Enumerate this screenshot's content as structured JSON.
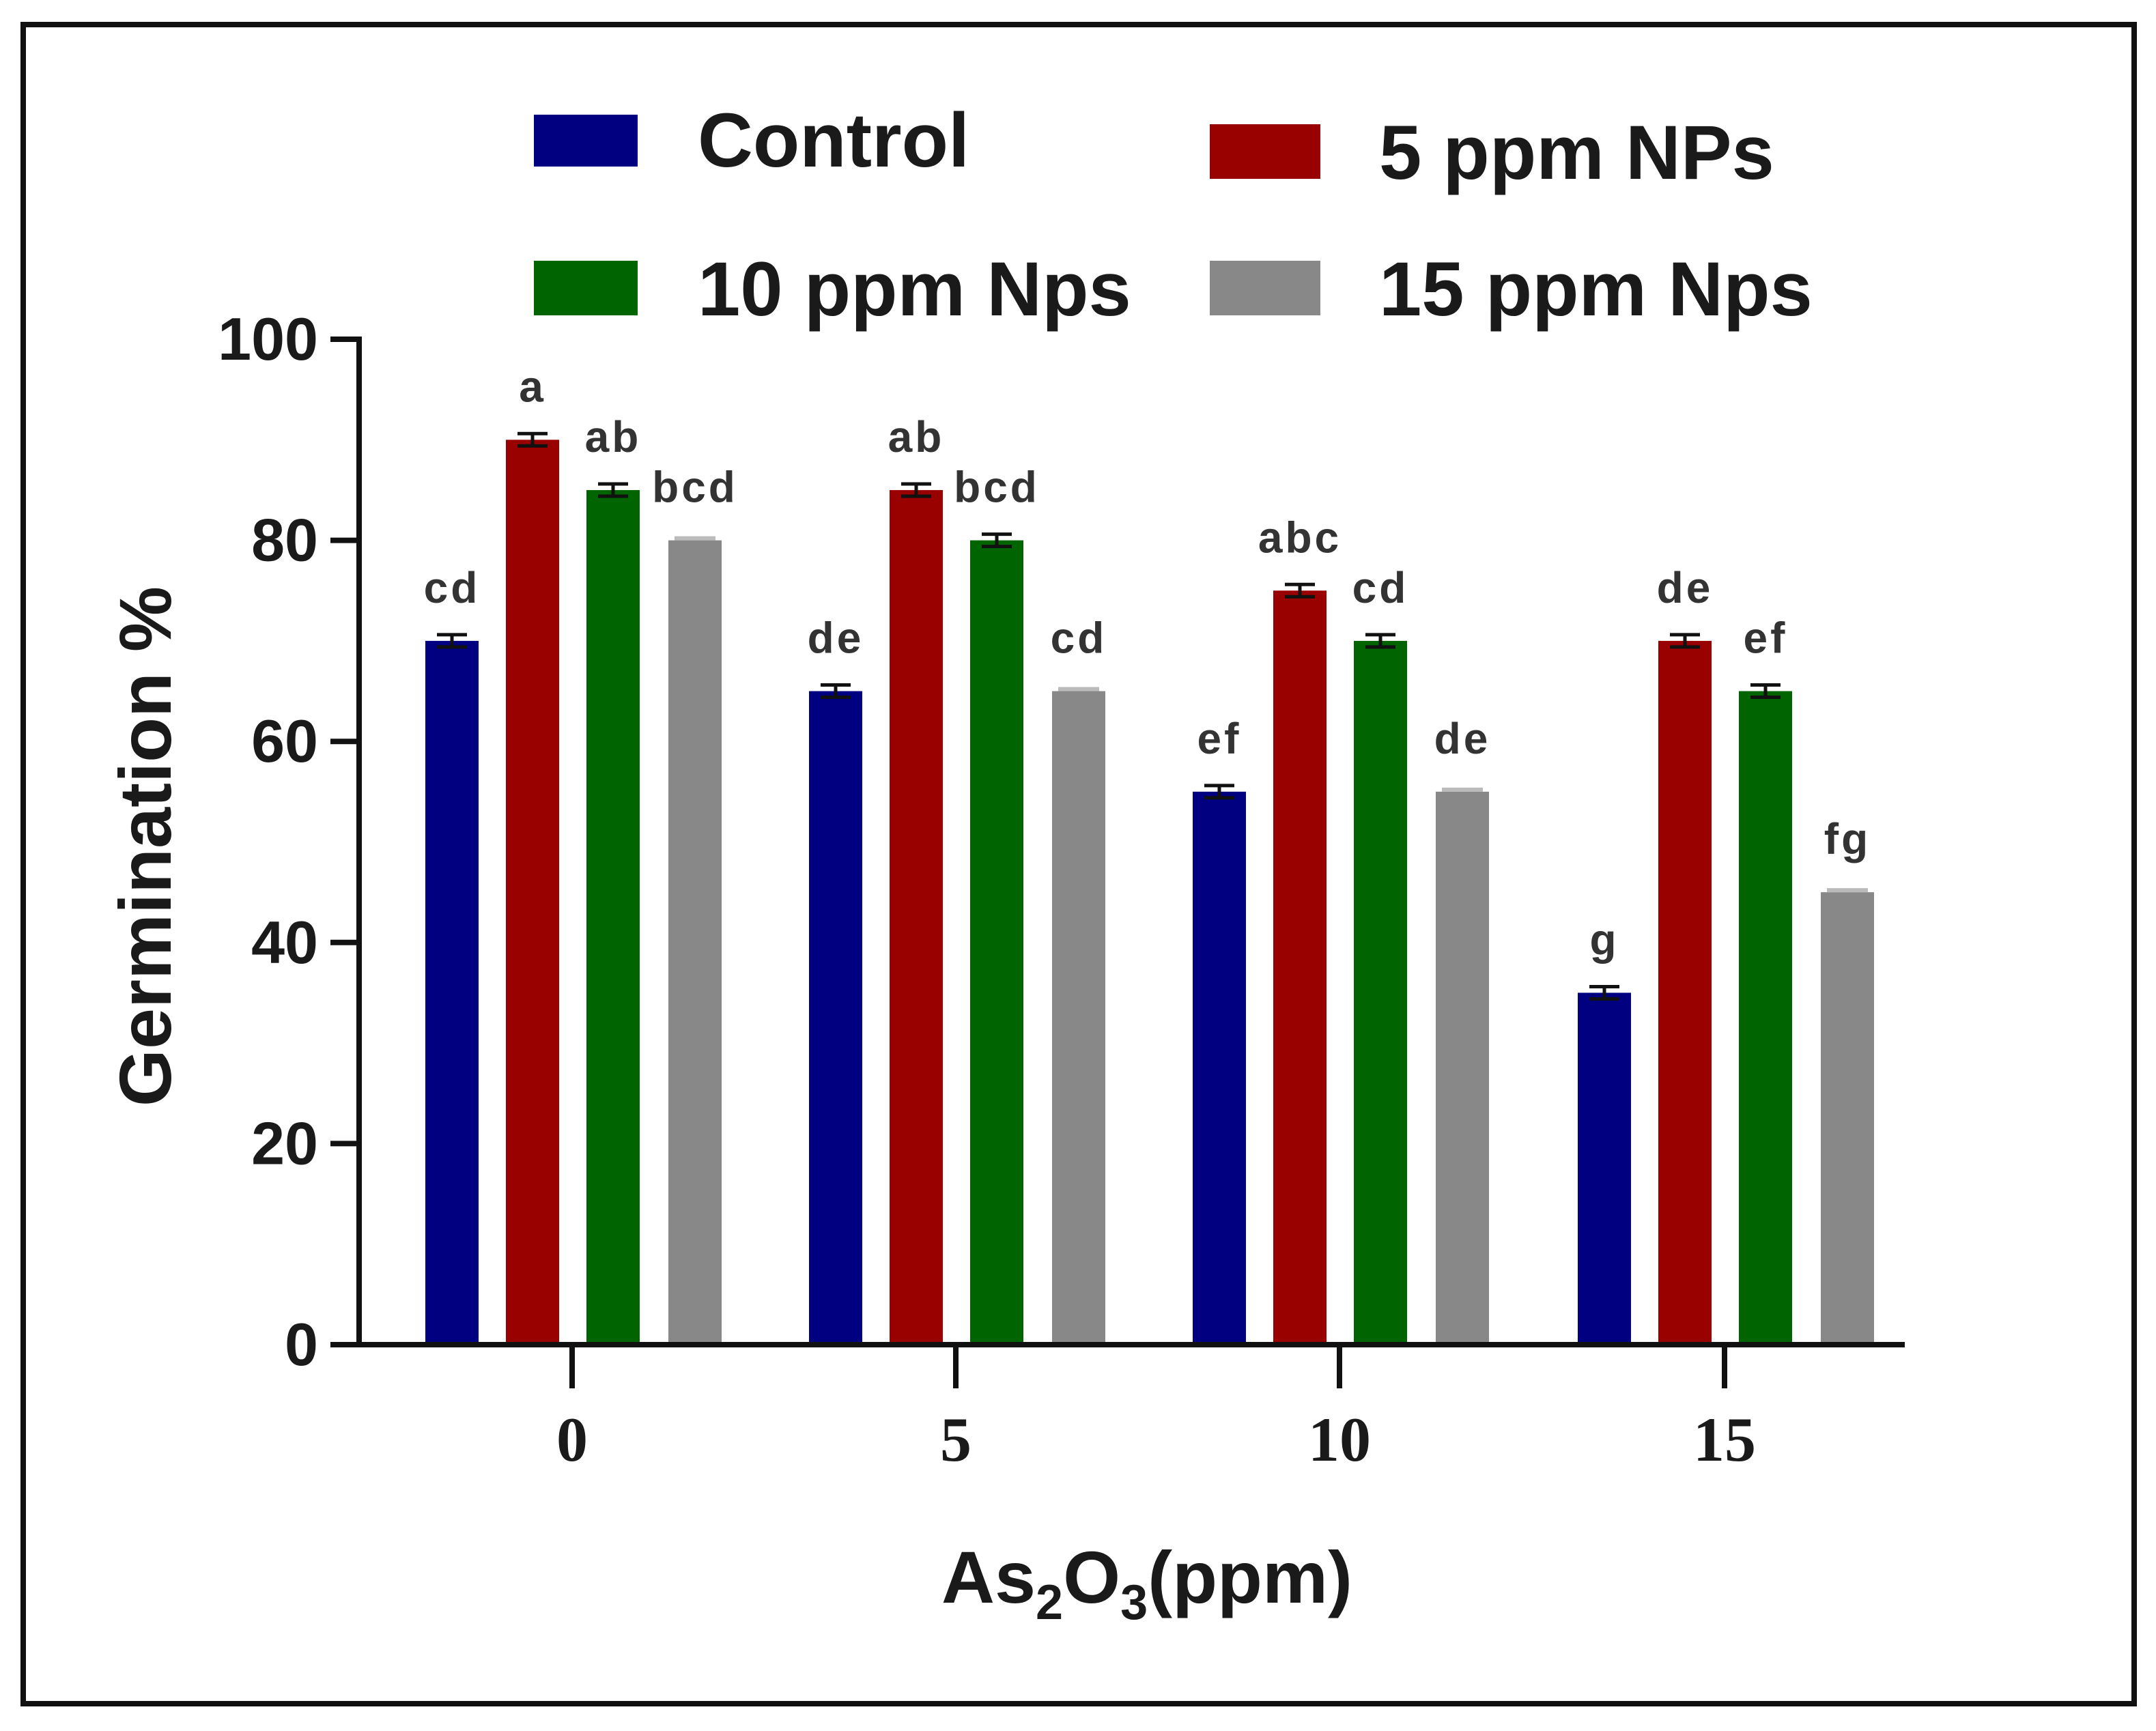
{
  "chart_data": {
    "type": "bar",
    "title": "",
    "xlabel": "As2O3(ppm)",
    "xlabel_main": "As",
    "xlabel_sub1": "2",
    "xlabel_mid": "O",
    "xlabel_sub2": "3",
    "xlabel_tail": "(ppm)",
    "ylabel": "Germination %",
    "ylim": [
      0,
      100
    ],
    "yticks": [
      0,
      20,
      40,
      60,
      80,
      100
    ],
    "categories": [
      "0",
      "5",
      "10",
      "15"
    ],
    "legend_position": "top",
    "series": [
      {
        "name": "Control",
        "color": "#000080",
        "values": [
          70,
          65,
          55,
          35
        ],
        "labels": [
          "cd",
          "de",
          "ef",
          "g"
        ]
      },
      {
        "name": "5 ppm NPs",
        "color": "#990000",
        "values": [
          90,
          85,
          75,
          70
        ],
        "labels": [
          "a",
          "ab",
          "abc",
          "de"
        ]
      },
      {
        "name": "10 ppm Nps",
        "color": "#006400",
        "values": [
          85,
          80,
          70,
          65
        ],
        "labels": [
          "ab",
          "bcd",
          "cd",
          "ef"
        ]
      },
      {
        "name": "15 ppm Nps",
        "color": "#888888",
        "values": [
          80,
          65,
          55,
          45
        ],
        "labels": [
          "bcd",
          "cd",
          "de",
          "fg"
        ]
      }
    ]
  }
}
